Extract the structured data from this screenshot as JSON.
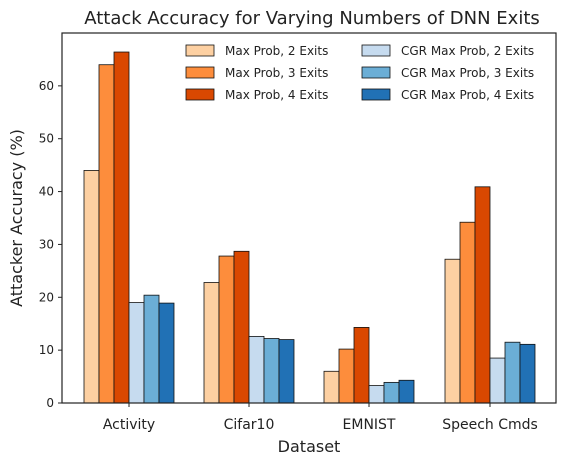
{
  "chart_data": {
    "type": "bar",
    "title": "Attack Accuracy for Varying Numbers of DNN Exits",
    "xlabel": "Dataset",
    "ylabel": "Attacker Accuracy (%)",
    "ylim": [
      0,
      70
    ],
    "yticks": [
      0,
      10,
      20,
      30,
      40,
      50,
      60
    ],
    "grid": false,
    "legend_position": "top-right",
    "categories": [
      "Activity",
      "Cifar10",
      "EMNIST",
      "Speech Cmds"
    ],
    "series": [
      {
        "name": "Max Prob, 2 Exits",
        "color": "#fdd0a2",
        "values": [
          44.0,
          22.8,
          6.0,
          27.2
        ]
      },
      {
        "name": "Max Prob, 3 Exits",
        "color": "#fd8d3c",
        "values": [
          64.0,
          27.8,
          10.2,
          34.2
        ]
      },
      {
        "name": "Max Prob, 4 Exits",
        "color": "#d94801",
        "values": [
          66.4,
          28.7,
          14.3,
          40.9
        ]
      },
      {
        "name": "CGR Max Prob, 2 Exits",
        "color": "#c6dbef",
        "values": [
          19.0,
          12.6,
          3.3,
          8.5
        ]
      },
      {
        "name": "CGR Max Prob, 3 Exits",
        "color": "#6baed6",
        "values": [
          20.4,
          12.2,
          3.9,
          11.5
        ]
      },
      {
        "name": "CGR Max Prob, 4 Exits",
        "color": "#2171b5",
        "values": [
          18.9,
          12.0,
          4.3,
          11.1
        ]
      }
    ]
  }
}
